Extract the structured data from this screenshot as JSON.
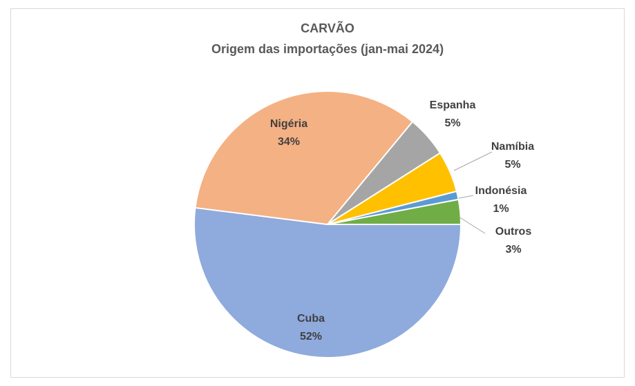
{
  "chart_data": {
    "type": "pie",
    "title": "CARVÃO",
    "subtitle": "Origem das importações (jan-mai 2024)",
    "categories": [
      "Cuba",
      "Nigéria",
      "Espanha",
      "Namíbia",
      "Indonésia",
      "Outros"
    ],
    "values": [
      52,
      34,
      5,
      5,
      1,
      3
    ],
    "value_labels": [
      "52%",
      "34%",
      "5%",
      "5%",
      "1%",
      "3%"
    ],
    "colors": [
      "#8faadc",
      "#f4b183",
      "#a5a5a5",
      "#ffc000",
      "#5b9bd5",
      "#70ad47"
    ]
  }
}
